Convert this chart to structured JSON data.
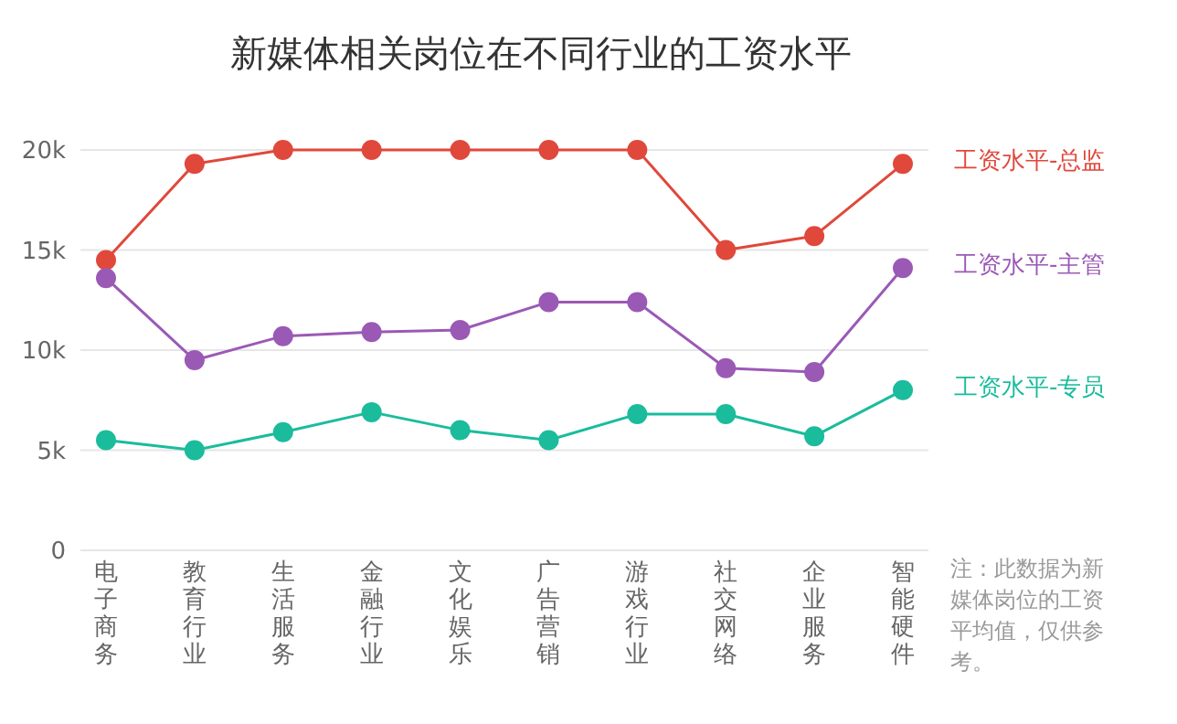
{
  "chart_data": {
    "type": "line",
    "title": "新媒体相关岗位在不同行业的工资水平",
    "categories": [
      "电子商务",
      "教育行业",
      "生活服务",
      "金融行业",
      "文化娱乐",
      "广告营销",
      "游戏行业",
      "社交网络",
      "企业服务",
      "智能硬件"
    ],
    "series": [
      {
        "name": "工资水平-总监",
        "color": "#e0483b",
        "values": [
          14500,
          19300,
          20000,
          20000,
          20000,
          20000,
          20000,
          15000,
          15700,
          19300
        ]
      },
      {
        "name": "工资水平-主管",
        "color": "#9b59b6",
        "values": [
          13600,
          9500,
          10700,
          10900,
          11000,
          12400,
          12400,
          9100,
          8900,
          14100
        ]
      },
      {
        "name": "工资水平-专员",
        "color": "#1abc9c",
        "values": [
          5500,
          5000,
          5900,
          6900,
          6000,
          5500,
          6800,
          6800,
          5700,
          8000
        ]
      }
    ],
    "ylim": [
      0,
      20000
    ],
    "yticks": [
      0,
      {
        "value": 5000,
        "label": "5k"
      },
      {
        "value": 10000,
        "label": "10k"
      },
      {
        "value": 15000,
        "label": "15k"
      },
      {
        "value": 20000,
        "label": "20k"
      }
    ],
    "grid": "y",
    "legend": "right",
    "marker": "circle",
    "line_style": "solid",
    "annotations": [
      "注：此数据为新媒体岗位的工资平均值，仅供参考。"
    ]
  }
}
